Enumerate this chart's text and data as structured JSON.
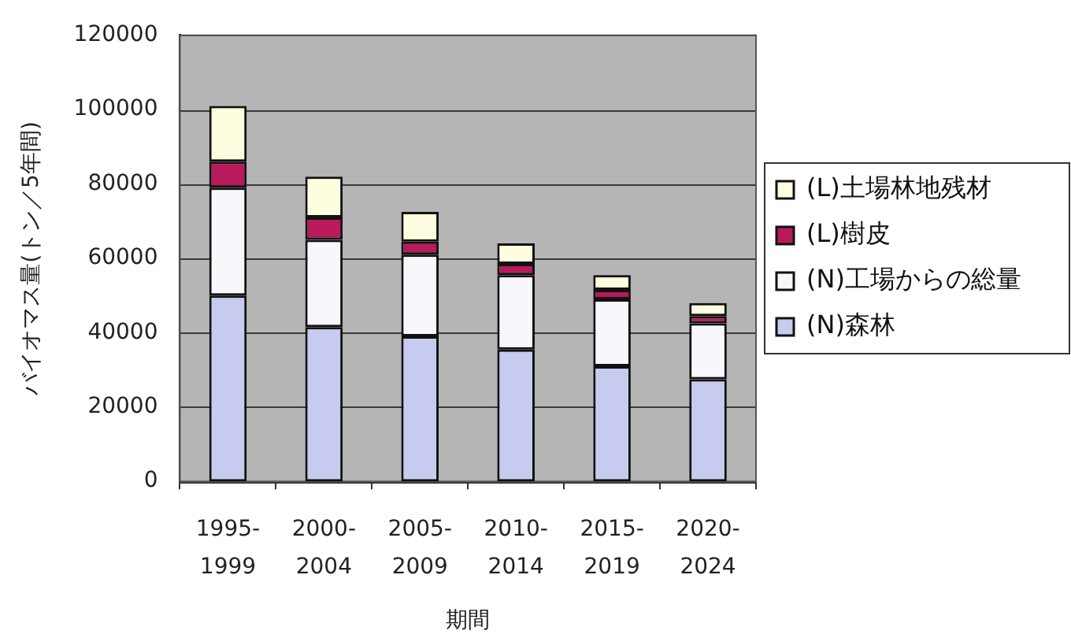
{
  "chart_data": {
    "type": "bar",
    "stacked": true,
    "categories": [
      "1995-1999",
      "2000-2004",
      "2005-2009",
      "2010-2014",
      "2015-2019",
      "2020-2024"
    ],
    "xlabel": "期間",
    "ylabel": "バイオマス量(トン／5年間)",
    "ylim": [
      0,
      120000
    ],
    "yticks": [
      0,
      20000,
      40000,
      60000,
      80000,
      100000,
      120000
    ],
    "grid": "y",
    "legend": "right",
    "series": [
      {
        "name": "(N)森林",
        "color": "#c8cbf0",
        "values": [
          50000,
          41500,
          39000,
          35500,
          31000,
          27500
        ]
      },
      {
        "name": "(N)工場からの総量",
        "color": "#f8f8fc",
        "values": [
          29000,
          23500,
          22000,
          20000,
          18000,
          15000
        ]
      },
      {
        "name": "(L)樹皮",
        "color": "#b81a5c",
        "values": [
          7000,
          6000,
          3500,
          3000,
          2500,
          2000
        ]
      },
      {
        "name": "(L)土場林地残材",
        "color": "#fffde0",
        "values": [
          15000,
          11000,
          8000,
          5500,
          4000,
          3500
        ]
      }
    ]
  }
}
